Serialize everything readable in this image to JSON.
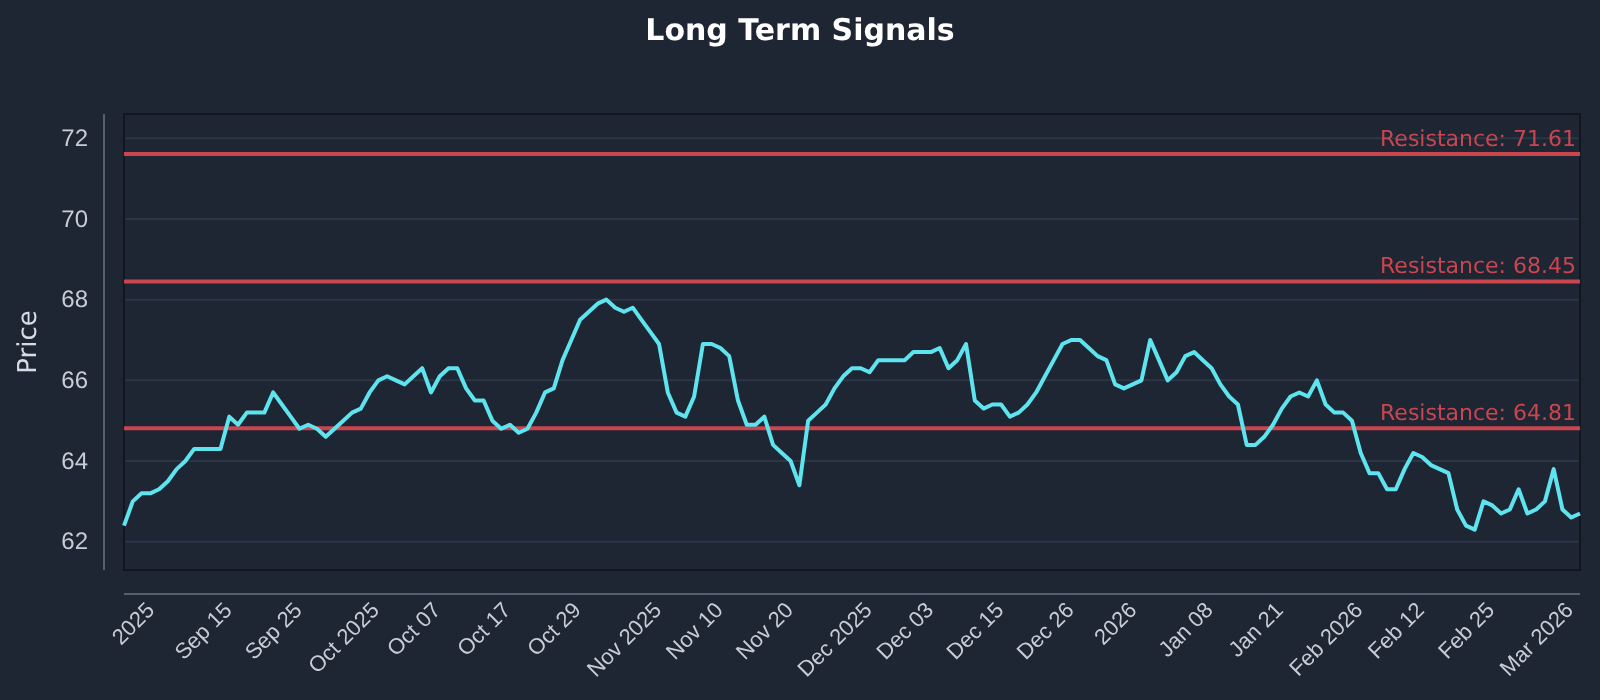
{
  "chart_data": {
    "type": "line",
    "title": "Long Term Signals",
    "ylabel": "Price",
    "categories": [
      null,
      "2025",
      null,
      null,
      null,
      null,
      null,
      null,
      null,
      "Sep 15",
      null,
      null,
      null,
      null,
      null,
      null,
      null,
      "Sep 25",
      null,
      null,
      null,
      null,
      null,
      null,
      null,
      "Oct 2025",
      null,
      null,
      null,
      null,
      null,
      null,
      null,
      "Oct 07",
      null,
      null,
      null,
      null,
      null,
      null,
      null,
      "Oct 17",
      null,
      null,
      null,
      null,
      null,
      null,
      null,
      "Oct 29",
      null,
      null,
      null,
      null,
      null,
      null,
      null,
      "Nov 2025",
      null,
      null,
      null,
      null,
      null,
      null,
      null,
      "Nov 10",
      null,
      null,
      null,
      null,
      null,
      null,
      null,
      "Nov 20",
      null,
      null,
      null,
      null,
      null,
      null,
      null,
      "Dec 2025",
      null,
      null,
      null,
      null,
      null,
      null,
      null,
      "Dec 03",
      null,
      null,
      null,
      null,
      null,
      null,
      null,
      "Dec 15",
      null,
      null,
      null,
      null,
      null,
      null,
      null,
      "Dec 26",
      null,
      null,
      null,
      null,
      null,
      null,
      null,
      "2026",
      null,
      null,
      null,
      null,
      null,
      null,
      null,
      "Jan 08",
      null,
      null,
      null,
      null,
      null,
      null,
      null,
      "Jan 21",
      null,
      null,
      null,
      null,
      null,
      null,
      null,
      "Feb 2026",
      null,
      null,
      null,
      null,
      null,
      null,
      null,
      "Feb 12",
      null,
      null,
      null,
      null,
      null,
      null,
      null,
      "Feb 25",
      null,
      null,
      null,
      null,
      null,
      null,
      null,
      "Mar 2026",
      null,
      null,
      null,
      null,
      null
    ],
    "series": [
      {
        "color": "#5de4ee",
        "values": [
          62.4,
          63.0,
          63.2,
          63.2,
          63.3,
          63.5,
          63.8,
          64.0,
          64.3,
          64.3,
          64.3,
          64.3,
          65.1,
          64.9,
          65.2,
          65.2,
          65.2,
          65.7,
          65.4,
          65.1,
          64.8,
          64.9,
          64.8,
          64.6,
          64.8,
          65.0,
          65.2,
          65.3,
          65.7,
          66.0,
          66.1,
          66.0,
          65.9,
          66.1,
          66.3,
          65.7,
          66.1,
          66.3,
          66.3,
          65.8,
          65.5,
          65.5,
          65.0,
          64.8,
          64.9,
          64.7,
          64.8,
          65.2,
          65.7,
          65.8,
          66.5,
          67.0,
          67.5,
          67.7,
          67.9,
          68.0,
          67.8,
          67.7,
          67.8,
          67.5,
          67.2,
          66.9,
          65.7,
          65.2,
          65.1,
          65.6,
          66.9,
          66.9,
          66.8,
          66.6,
          65.5,
          64.9,
          64.9,
          65.1,
          64.4,
          64.2,
          64.0,
          63.4,
          65.0,
          65.2,
          65.4,
          65.8,
          66.1,
          66.3,
          66.3,
          66.2,
          66.5,
          66.5,
          66.5,
          66.5,
          66.7,
          66.7,
          66.7,
          66.8,
          66.3,
          66.5,
          66.9,
          65.5,
          65.3,
          65.4,
          65.4,
          65.1,
          65.2,
          65.4,
          65.7,
          66.1,
          66.5,
          66.9,
          67.0,
          67.0,
          66.8,
          66.6,
          66.5,
          65.9,
          65.8,
          65.9,
          66.0,
          67.0,
          66.5,
          66.0,
          66.2,
          66.6,
          66.7,
          66.5,
          66.3,
          65.9,
          65.6,
          65.4,
          64.4,
          64.4,
          64.6,
          64.9,
          65.3,
          65.6,
          65.7,
          65.6,
          66.0,
          65.4,
          65.2,
          65.2,
          65.0,
          64.2,
          63.7,
          63.7,
          63.3,
          63.3,
          63.8,
          64.2,
          64.1,
          63.9,
          63.8,
          63.7,
          62.8,
          62.4,
          62.3,
          63.0,
          62.9,
          62.7,
          62.8,
          63.3,
          62.7,
          62.8,
          63.0,
          63.8,
          62.8,
          62.6,
          62.7
        ]
      }
    ],
    "ylim": [
      61.3,
      72.6
    ],
    "yticks": [
      62,
      64,
      66,
      68,
      70,
      72
    ],
    "grid": "y",
    "ref_lines": [
      {
        "axis": "y",
        "value": 71.61,
        "label": "Resistance: 71.61",
        "color": "#c9464f"
      },
      {
        "axis": "y",
        "value": 68.45,
        "label": "Resistance: 68.45",
        "color": "#c9464f"
      },
      {
        "axis": "y",
        "value": 64.81,
        "label": "Resistance: 64.81",
        "color": "#c9464f"
      }
    ]
  }
}
